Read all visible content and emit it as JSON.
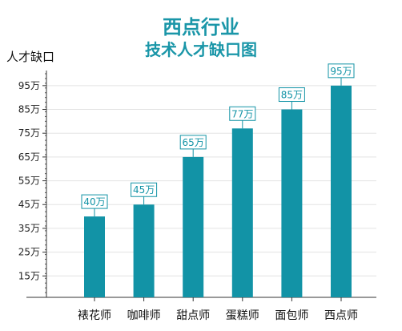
{
  "chart_data": {
    "type": "bar",
    "title": "西点行业",
    "subtitle": "技术人才缺口图",
    "ylabel": "人才缺口",
    "xlabel": "",
    "categories": [
      "裱花师",
      "咖啡师",
      "甜点师",
      "蛋糕师",
      "面包师",
      "西点师"
    ],
    "values": [
      40,
      45,
      65,
      77,
      85,
      95
    ],
    "data_labels": [
      "40万",
      "45万",
      "65万",
      "77万",
      "85万",
      "95万"
    ],
    "yticks": [
      15,
      25,
      35,
      45,
      55,
      65,
      75,
      85,
      95
    ],
    "ytick_labels": [
      "15万",
      "25万",
      "35万",
      "45万",
      "55万",
      "65万",
      "75万",
      "85万",
      "95万"
    ],
    "ylim": [
      6,
      100
    ],
    "grid": true,
    "legend": "none",
    "colors": {
      "bar": "#1293a6",
      "label_border": "#1293a6",
      "label_text": "#1293a6",
      "title": "#1a96a8"
    }
  }
}
